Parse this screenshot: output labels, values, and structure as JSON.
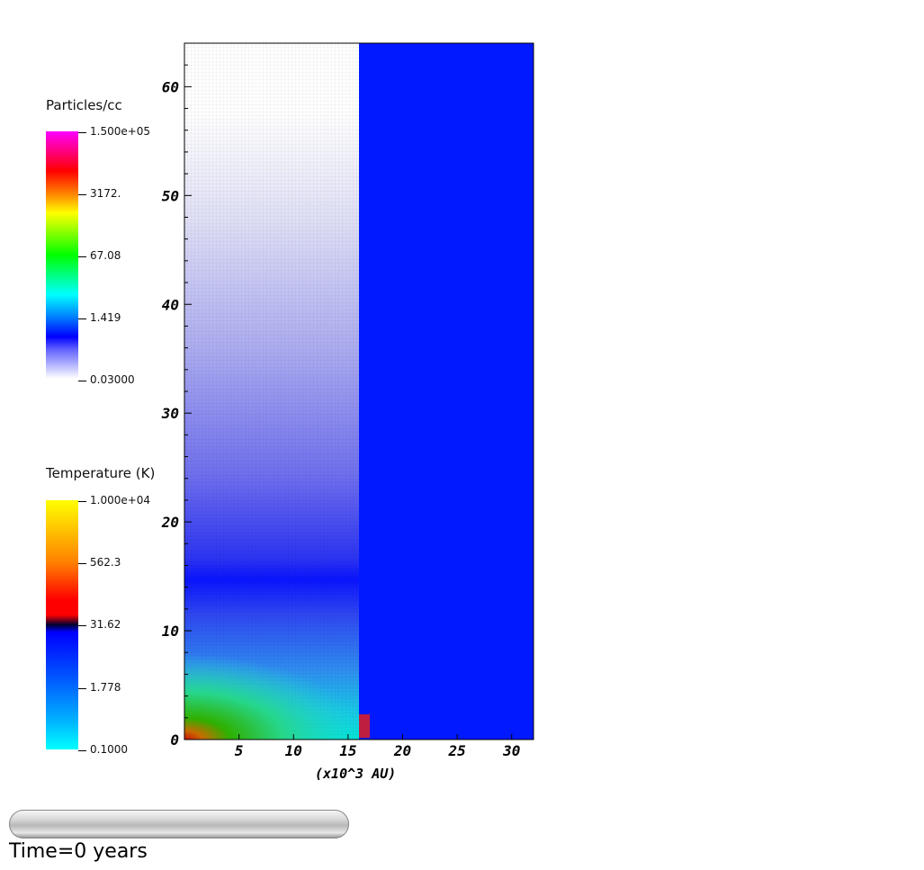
{
  "colorbars": {
    "density": {
      "title": "Particles/cc",
      "ticks": [
        "1.500e+05",
        "3172.",
        "67.08",
        "1.419",
        "0.03000"
      ]
    },
    "temperature": {
      "title": "Temperature (K)",
      "ticks": [
        "1.000e+04",
        "562.3",
        "31.62",
        "1.778",
        "0.1000"
      ]
    }
  },
  "chart_data": {
    "type": "heatmap",
    "xlabel": "(x10^3 AU)",
    "xlim": [
      0,
      32
    ],
    "ylim": [
      0,
      64
    ],
    "x_ticks": [
      5,
      10,
      15,
      20,
      25,
      30
    ],
    "y_ticks": [
      0,
      10,
      20,
      30,
      40,
      50,
      60
    ],
    "panels": [
      {
        "field": "density",
        "x_range": [
          0,
          16
        ]
      },
      {
        "field": "temperature",
        "x_range": [
          16,
          32
        ]
      }
    ],
    "colors": {
      "right_panel": "#0019ff",
      "density_top": "#ffffff",
      "density_mid": "#0a14ff",
      "density_bottom": "#00e6e6",
      "core": "#1aa800"
    }
  },
  "footer": {
    "time_label": "Time=0 years"
  }
}
